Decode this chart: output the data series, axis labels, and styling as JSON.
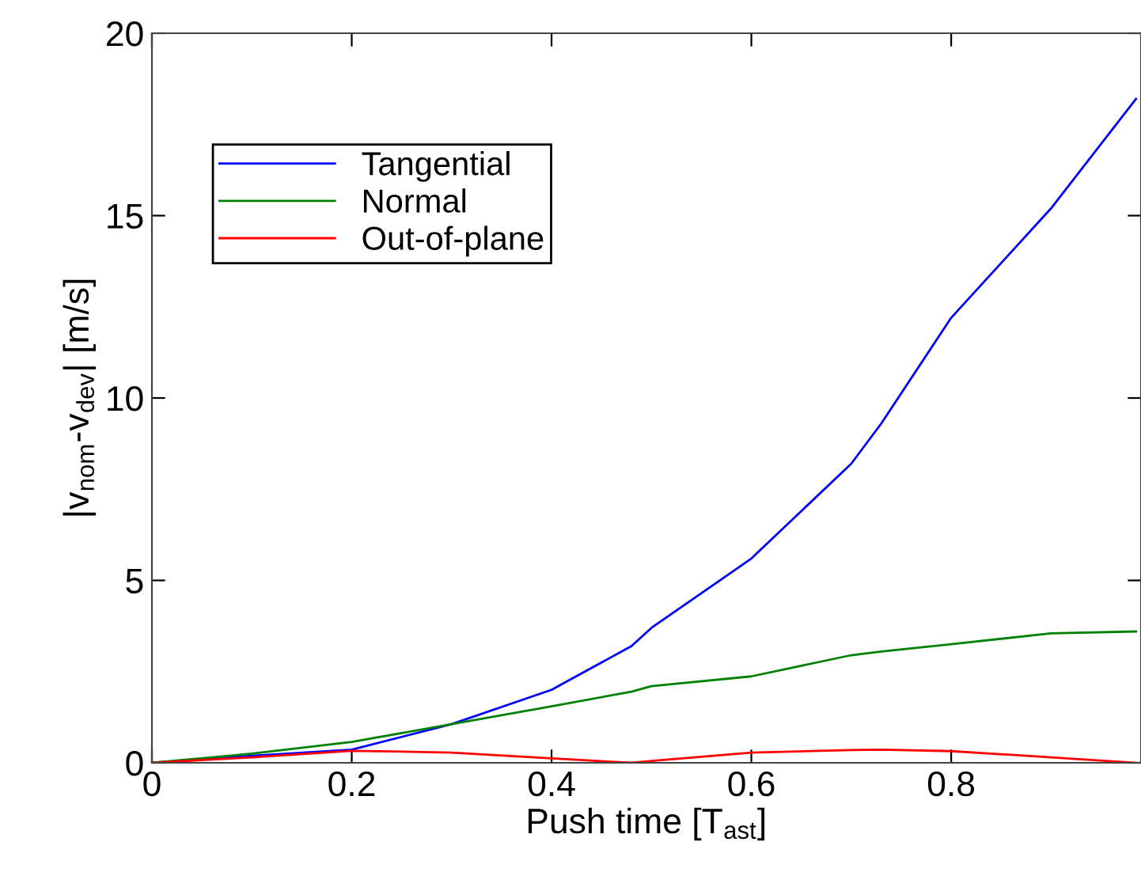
{
  "chart_data": {
    "type": "line",
    "xlabel": "Push time [T$_{ast}$]",
    "ylabel": "|v$_{nom}$-v$_{dev}$| [m/s]",
    "xlim": [
      0,
      0.99
    ],
    "xticks": [
      0,
      0.2,
      0.4,
      0.6,
      0.8
    ],
    "ylim": [
      0,
      20
    ],
    "yticks": [
      0,
      5,
      10,
      15,
      20
    ],
    "grid": false,
    "legend": "top left",
    "marker": "none",
    "line_style": "solid",
    "x": [
      0,
      0.1,
      0.2,
      0.3,
      0.4,
      0.48,
      0.5,
      0.6,
      0.7,
      0.73,
      0.8,
      0.9,
      0.985
    ],
    "series": [
      {
        "name": "Tangential",
        "color": "#0000ff",
        "values": [
          0,
          0.19,
          0.36,
          1.06,
          2.0,
          3.2,
          3.7,
          5.6,
          8.2,
          9.3,
          12.2,
          15.2,
          18.2
        ]
      },
      {
        "name": "Normal",
        "color": "#008000",
        "values": [
          0,
          0.25,
          0.57,
          1.06,
          1.55,
          1.95,
          2.1,
          2.37,
          2.95,
          3.05,
          3.25,
          3.55,
          3.6
        ]
      },
      {
        "name": "Out-of-plane",
        "color": "#ff0000",
        "values": [
          0,
          0.15,
          0.33,
          0.28,
          0.12,
          0,
          0.05,
          0.28,
          0.35,
          0.36,
          0.32,
          0.15,
          0
        ]
      }
    ]
  }
}
